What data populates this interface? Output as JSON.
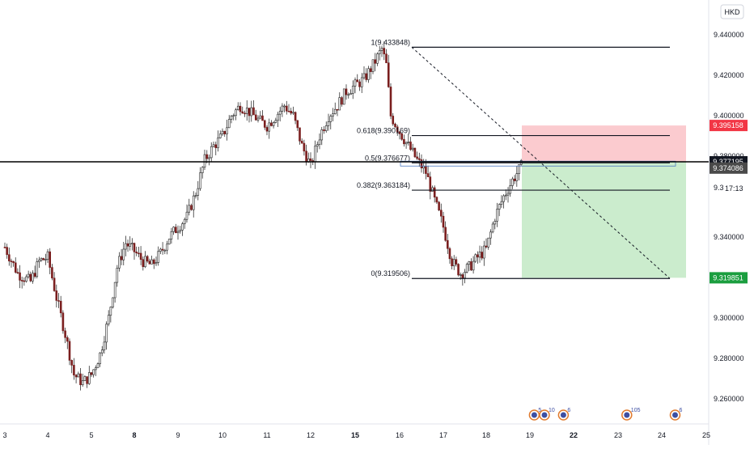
{
  "currency_button": "HKD",
  "chart_data": {
    "type": "candlestick",
    "ylim": [
      9.25,
      9.455
    ],
    "y_ticks": [
      "9.440000",
      "9.420000",
      "9.400000",
      "9.380000",
      "9.373320",
      "9.340000",
      "9.320000",
      "9.300000",
      "9.280000",
      "9.260000"
    ],
    "y_tick_values": [
      9.44,
      9.42,
      9.4,
      9.38,
      9.37332,
      9.34,
      9.32,
      9.3,
      9.28,
      9.26
    ],
    "x_ticks": [
      {
        "label": "3",
        "day": 3,
        "bold": false
      },
      {
        "label": "4",
        "day": 4,
        "bold": false
      },
      {
        "label": "5",
        "day": 5,
        "bold": false
      },
      {
        "label": "8",
        "day": 8,
        "bold": true
      },
      {
        "label": "9",
        "day": 9,
        "bold": false
      },
      {
        "label": "10",
        "day": 10,
        "bold": false
      },
      {
        "label": "11",
        "day": 11,
        "bold": false
      },
      {
        "label": "12",
        "day": 12,
        "bold": false
      },
      {
        "label": "15",
        "day": 15,
        "bold": true
      },
      {
        "label": "16",
        "day": 16,
        "bold": false
      },
      {
        "label": "17",
        "day": 17,
        "bold": false
      },
      {
        "label": "18",
        "day": 18,
        "bold": false
      },
      {
        "label": "19",
        "day": 19,
        "bold": false
      },
      {
        "label": "22",
        "day": 22,
        "bold": true
      },
      {
        "label": "23",
        "day": 23,
        "bold": false
      },
      {
        "label": "24",
        "day": 24,
        "bold": false
      },
      {
        "label": "25",
        "day": 25,
        "bold": false
      }
    ],
    "price_path": [
      {
        "day": 3.0,
        "p": 9.335
      },
      {
        "day": 3.3,
        "p": 9.322
      },
      {
        "day": 3.6,
        "p": 9.318
      },
      {
        "day": 3.8,
        "p": 9.328
      },
      {
        "day": 4.0,
        "p": 9.33
      },
      {
        "day": 4.2,
        "p": 9.31
      },
      {
        "day": 4.4,
        "p": 9.292
      },
      {
        "day": 4.6,
        "p": 9.272
      },
      {
        "day": 4.8,
        "p": 9.268
      },
      {
        "day": 5.0,
        "p": 9.272
      },
      {
        "day": 5.2,
        "p": 9.282
      },
      {
        "day": 5.4,
        "p": 9.3
      },
      {
        "day": 5.6,
        "p": 9.325
      },
      {
        "day": 5.8,
        "p": 9.337
      },
      {
        "day": 6.0,
        "p": 9.333
      },
      {
        "day": 6.2,
        "p": 9.328
      },
      {
        "day": 6.4,
        "p": 9.326
      },
      {
        "day": 6.6,
        "p": 9.332
      },
      {
        "day": 6.8,
        "p": 9.34
      },
      {
        "day": 7.0,
        "p": 9.345
      },
      {
        "day": 7.2,
        "p": 9.35
      },
      {
        "day": 7.4,
        "p": 9.362
      },
      {
        "day": 7.6,
        "p": 9.378
      },
      {
        "day": 7.8,
        "p": 9.385
      },
      {
        "day": 8.0,
        "p": 9.39
      },
      {
        "day": 8.2,
        "p": 9.4
      },
      {
        "day": 8.4,
        "p": 9.405
      },
      {
        "day": 8.6,
        "p": 9.402
      },
      {
        "day": 8.8,
        "p": 9.398
      },
      {
        "day": 9.0,
        "p": 9.395
      },
      {
        "day": 9.2,
        "p": 9.4
      },
      {
        "day": 9.4,
        "p": 9.405
      },
      {
        "day": 9.6,
        "p": 9.4
      },
      {
        "day": 9.8,
        "p": 9.385
      },
      {
        "day": 10.0,
        "p": 9.375
      },
      {
        "day": 10.2,
        "p": 9.39
      },
      {
        "day": 10.4,
        "p": 9.4
      },
      {
        "day": 10.6,
        "p": 9.405
      },
      {
        "day": 10.8,
        "p": 9.412
      },
      {
        "day": 11.0,
        "p": 9.415
      },
      {
        "day": 11.2,
        "p": 9.418
      },
      {
        "day": 11.4,
        "p": 9.425
      },
      {
        "day": 11.6,
        "p": 9.433
      },
      {
        "day": 11.7,
        "p": 9.425
      },
      {
        "day": 11.8,
        "p": 9.4
      },
      {
        "day": 12.0,
        "p": 9.392
      },
      {
        "day": 12.2,
        "p": 9.385
      },
      {
        "day": 12.4,
        "p": 9.378
      },
      {
        "day": 12.6,
        "p": 9.372
      },
      {
        "day": 12.8,
        "p": 9.358
      },
      {
        "day": 13.0,
        "p": 9.345
      },
      {
        "day": 13.2,
        "p": 9.328
      },
      {
        "day": 13.4,
        "p": 9.322
      },
      {
        "day": 13.6,
        "p": 9.325
      },
      {
        "day": 13.8,
        "p": 9.33
      },
      {
        "day": 14.0,
        "p": 9.334
      },
      {
        "day": 14.2,
        "p": 9.35
      },
      {
        "day": 14.4,
        "p": 9.36
      },
      {
        "day": 14.6,
        "p": 9.368
      },
      {
        "day": 14.8,
        "p": 9.375
      }
    ],
    "fibonacci": {
      "levels": [
        {
          "label": "1(9.433848)",
          "value": 9.433848
        },
        {
          "label": "0.618(9.390169)",
          "value": 9.390169
        },
        {
          "label": "0.5(9.376677)",
          "value": 9.376677
        },
        {
          "label": "0.382(9.363184)",
          "value": 9.363184
        },
        {
          "label": "0(9.319506)",
          "value": 9.319506
        }
      ]
    },
    "horizontal_line": 9.37719,
    "position": {
      "stop_loss": 9.395158,
      "entry": 9.37719,
      "target": 9.319851,
      "start_day": 18.8,
      "end_day": 24.5
    },
    "price_badges": [
      {
        "label": "9.395158",
        "value": 9.395158,
        "color": "#f23645"
      },
      {
        "label": "9.377195",
        "value": 9.377195,
        "color": "#131722"
      },
      {
        "label": "9.374086",
        "value": 9.374086,
        "color": "#4a4a4a"
      },
      {
        "label": "9.319851",
        "value": 9.319851,
        "color": "#1b9e3f"
      }
    ],
    "countdown": "17:13",
    "events": [
      {
        "day": 19.3,
        "count": "5"
      },
      {
        "day": 20.0,
        "count": "10"
      },
      {
        "day": 21.3,
        "count": "6"
      },
      {
        "day": 23.2,
        "count": "105"
      },
      {
        "day": 24.3,
        "count": "6"
      }
    ],
    "grid": false
  }
}
